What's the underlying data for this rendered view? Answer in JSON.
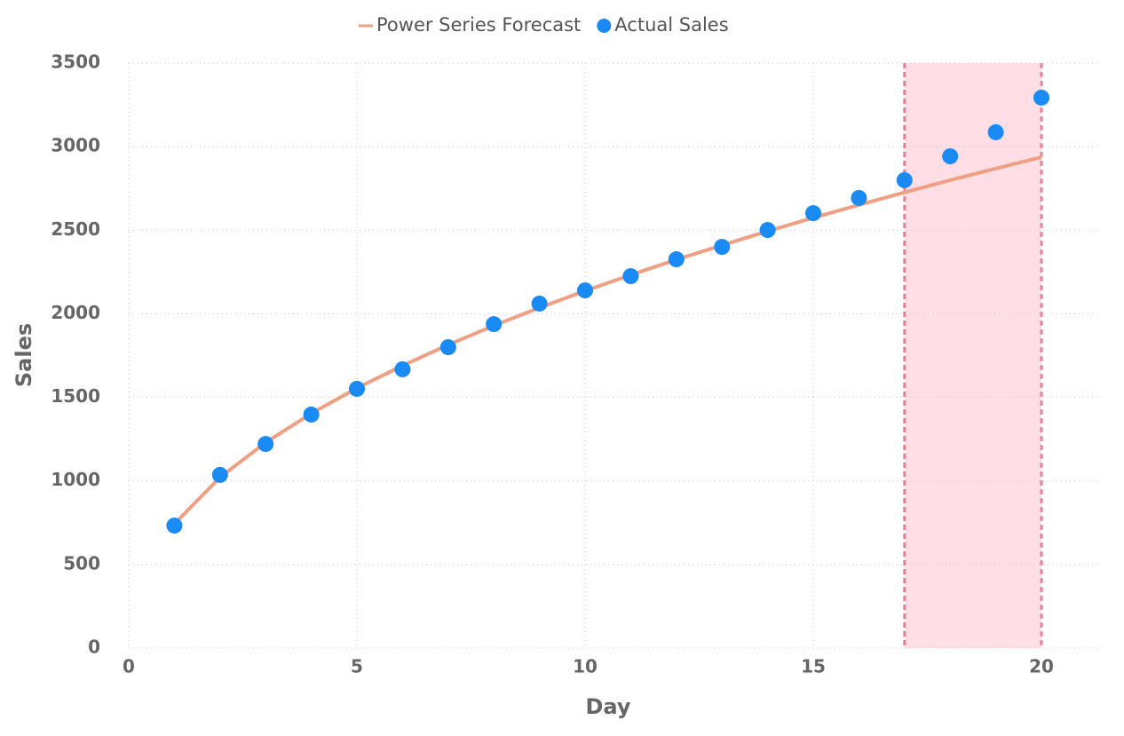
{
  "chart_data": {
    "type": "line",
    "x_label": "Day",
    "y_label": "Sales",
    "x": [
      1,
      2,
      3,
      4,
      5,
      6,
      7,
      8,
      9,
      10,
      11,
      12,
      13,
      14,
      15,
      16,
      17,
      18,
      19,
      20
    ],
    "series": [
      {
        "name": "Power Series Forecast",
        "kind": "line",
        "color": "#ef9f84",
        "values": [
          743,
          1021,
          1230,
          1404,
          1555,
          1690,
          1814,
          1929,
          2036,
          2137,
          2232,
          2324,
          2410,
          2494,
          2574,
          2651,
          2726,
          2799,
          2869,
          2937
        ]
      },
      {
        "name": "Actual Sales",
        "kind": "scatter",
        "color": "#1a8af5",
        "values": [
          733,
          1036,
          1221,
          1397,
          1551,
          1668,
          1800,
          1938,
          2061,
          2140,
          2225,
          2326,
          2400,
          2501,
          2602,
          2693,
          2799,
          2942,
          3086,
          3293
        ]
      }
    ],
    "highlight": {
      "x_range": [
        17,
        20
      ],
      "color": "#ffb6c8",
      "edge_color": "#e5808f"
    },
    "xlim": [
      0,
      21.3
    ],
    "ylim": [
      0,
      3500
    ],
    "xticks": [
      0,
      5,
      10,
      15,
      20
    ],
    "yticks": [
      0,
      500,
      1000,
      1500,
      2000,
      2500,
      3000,
      3500
    ],
    "grid": true,
    "legend": "top"
  }
}
